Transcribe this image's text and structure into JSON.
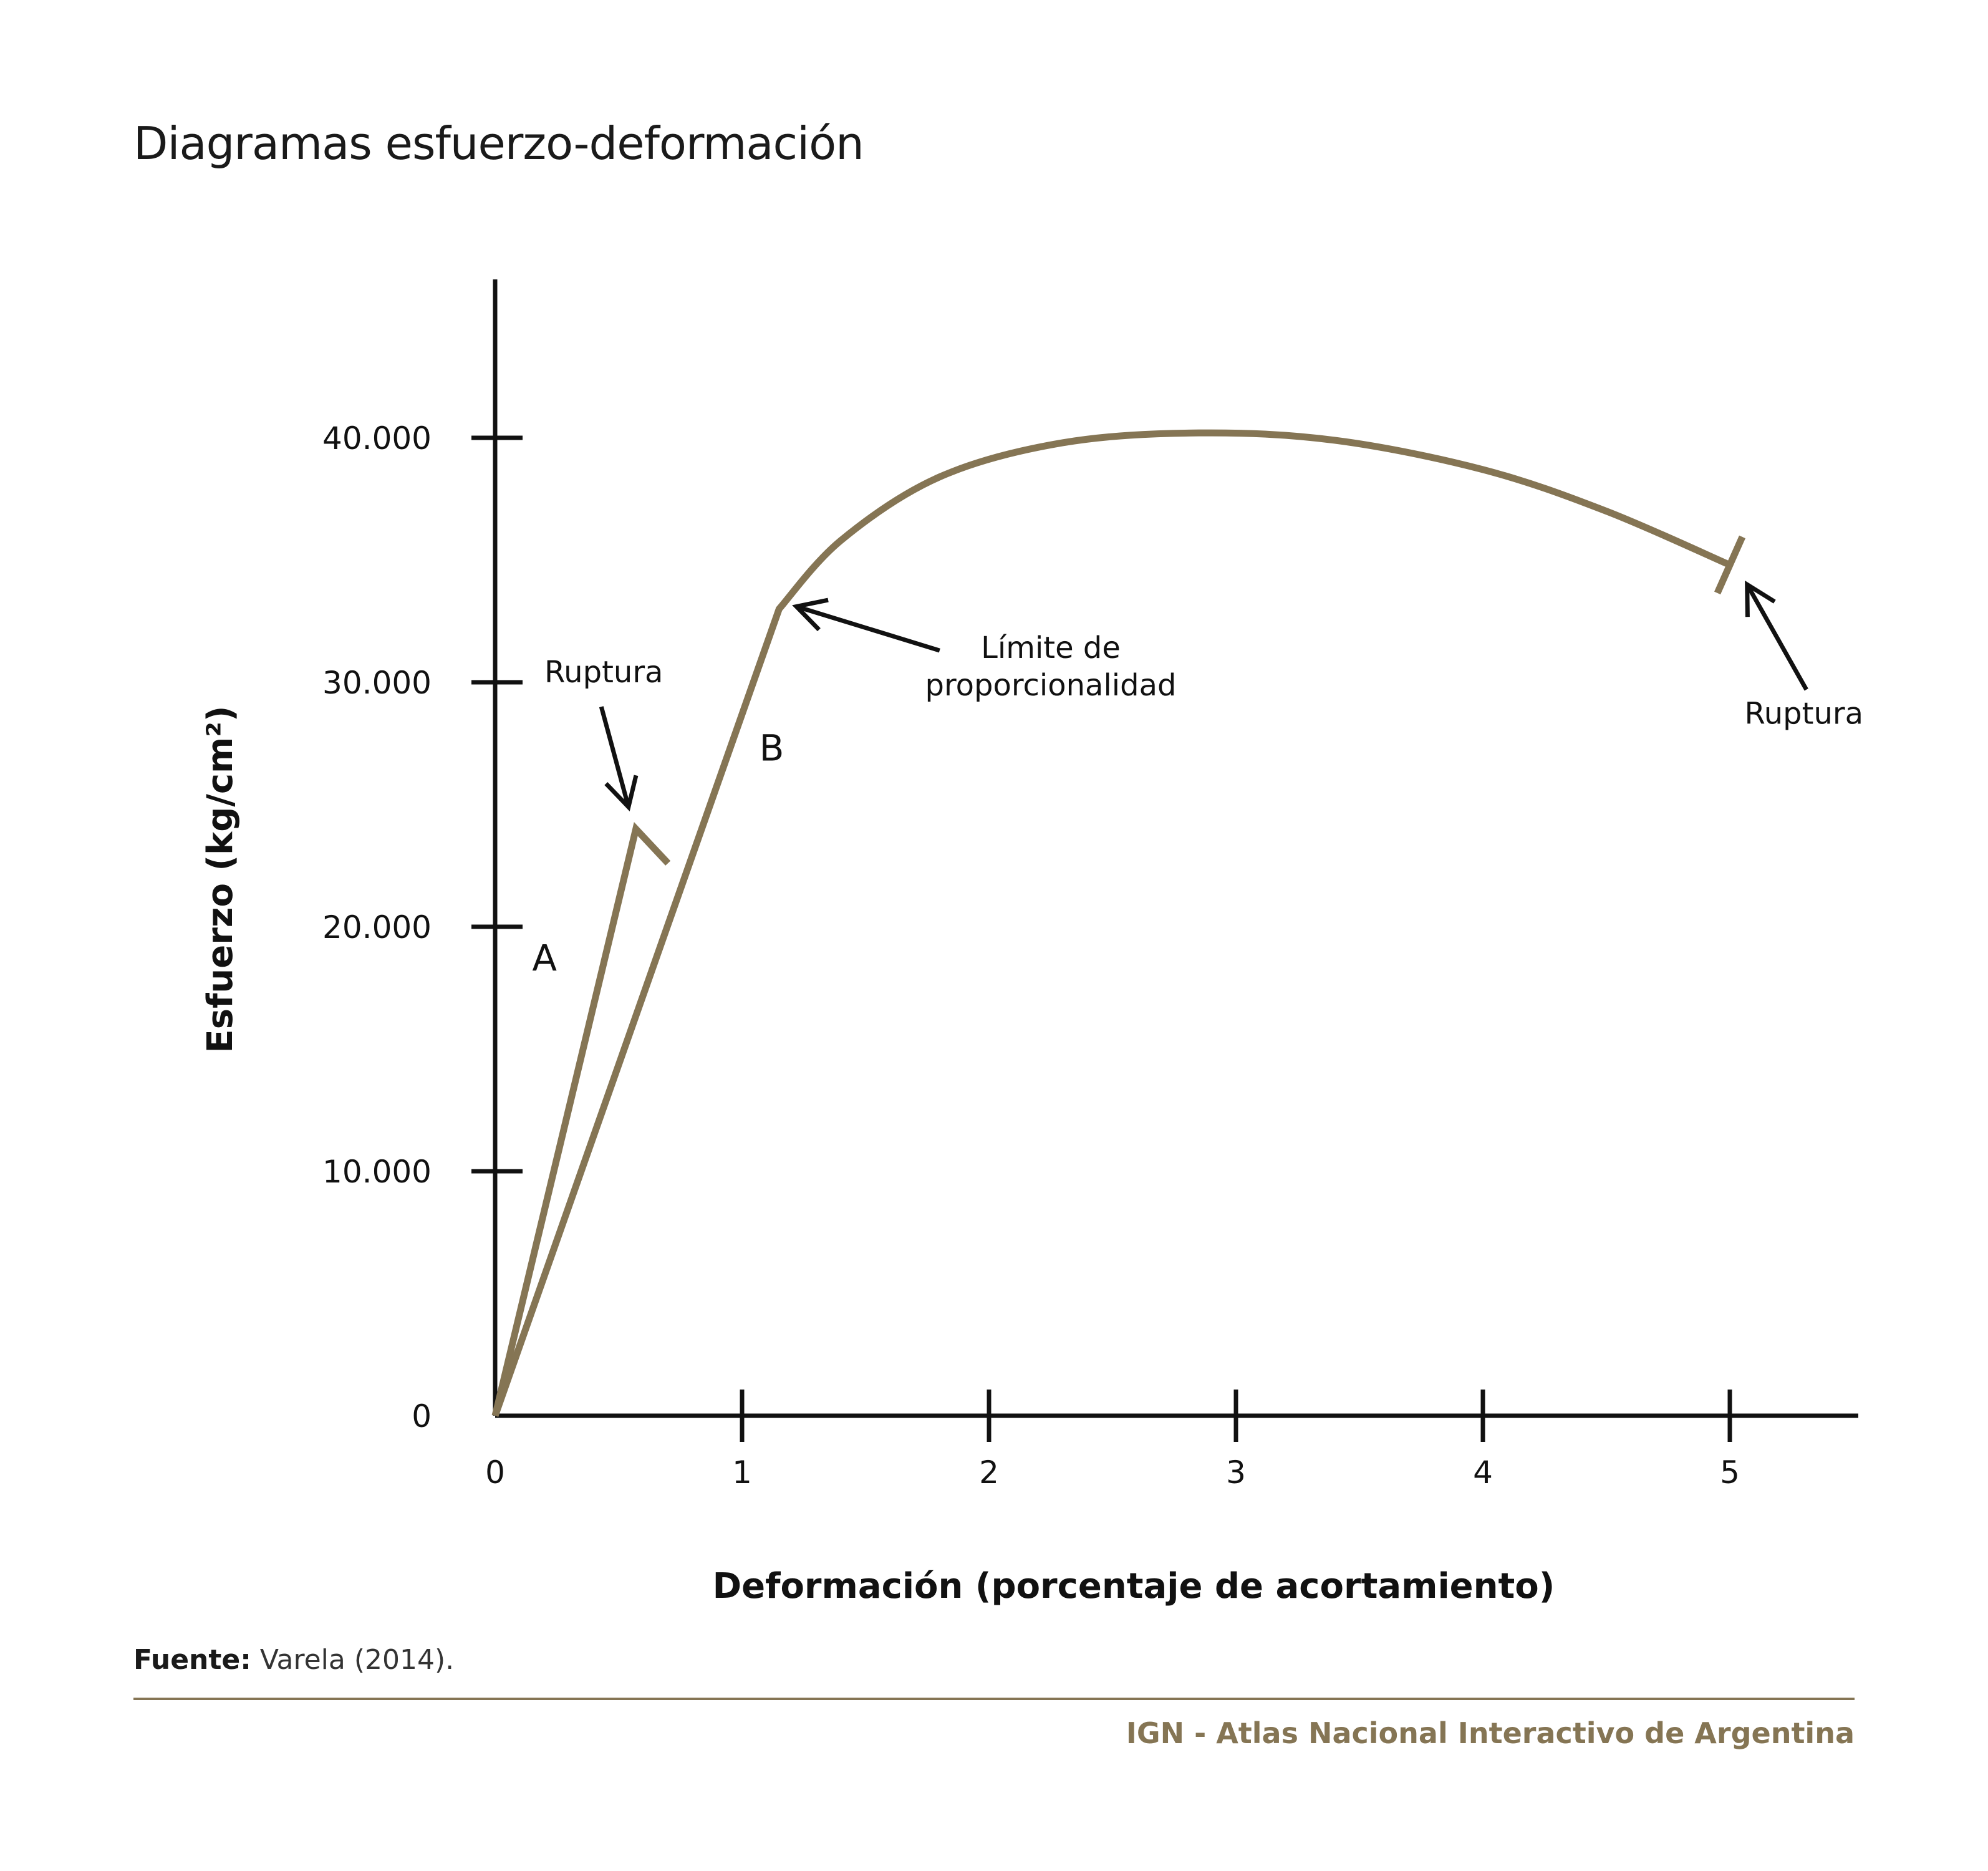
{
  "title": "Diagramas esfuerzo-deformación",
  "colors": {
    "curve": "#857554",
    "axis": "#111111",
    "footer": "#857554"
  },
  "chart_data": {
    "type": "line",
    "xlabel": "Deformación (porcentaje de acortamiento)",
    "ylabel": "Esfuerzo (kg/cm²)",
    "xlim": [
      0,
      5.55
    ],
    "ylim": [
      0,
      46500
    ],
    "x_ticks": [
      0,
      1,
      2,
      3,
      4,
      5
    ],
    "x_tick_labels": [
      "0",
      "1",
      "2",
      "3",
      "4",
      "5"
    ],
    "y_ticks": [
      0,
      10000,
      20000,
      30000,
      40000
    ],
    "y_tick_labels": [
      "0",
      "10.000",
      "20.000",
      "30.000",
      "40.000"
    ],
    "grid": false,
    "series": [
      {
        "name": "A",
        "points": [
          [
            0,
            0
          ],
          [
            0.57,
            24000
          ],
          [
            0.7,
            22600
          ]
        ]
      },
      {
        "name": "B",
        "points": [
          [
            0,
            0
          ],
          [
            1.15,
            33000
          ],
          [
            1.4,
            35800
          ],
          [
            1.8,
            38400
          ],
          [
            2.3,
            39800
          ],
          [
            2.85,
            40200
          ],
          [
            3.4,
            39900
          ],
          [
            4.0,
            38700
          ],
          [
            4.5,
            37000
          ],
          [
            5.0,
            34800
          ]
        ]
      }
    ],
    "rupture_markers": [
      {
        "x": 5.0,
        "y": 34800
      }
    ],
    "series_labels": [
      {
        "text": "A",
        "x": 0.2,
        "y": 18200
      },
      {
        "text": "B",
        "x": 1.12,
        "y": 26800
      }
    ],
    "annotations": [
      {
        "id": "ruptura-a",
        "lines": [
          "Ruptura"
        ],
        "text_x": 0.44,
        "text_y": 30000,
        "arrow_from": [
          0.43,
          29000
        ],
        "arrow_to": [
          0.54,
          24900
        ]
      },
      {
        "id": "limite",
        "lines": [
          "Límite de",
          "proporcionalidad"
        ],
        "text_x": 2.25,
        "text_y": 31000,
        "arrow_from": [
          1.8,
          31300
        ],
        "arrow_to": [
          1.22,
          33100
        ]
      },
      {
        "id": "ruptura-b",
        "lines": [
          "Ruptura"
        ],
        "text_x": 5.3,
        "text_y": 28300,
        "arrow_from": [
          5.31,
          29700
        ],
        "arrow_to": [
          5.07,
          34000
        ]
      }
    ]
  },
  "source": {
    "label": "Fuente:",
    "value": " Varela (2014)."
  },
  "footer": "IGN - Atlas Nacional Interactivo de Argentina"
}
